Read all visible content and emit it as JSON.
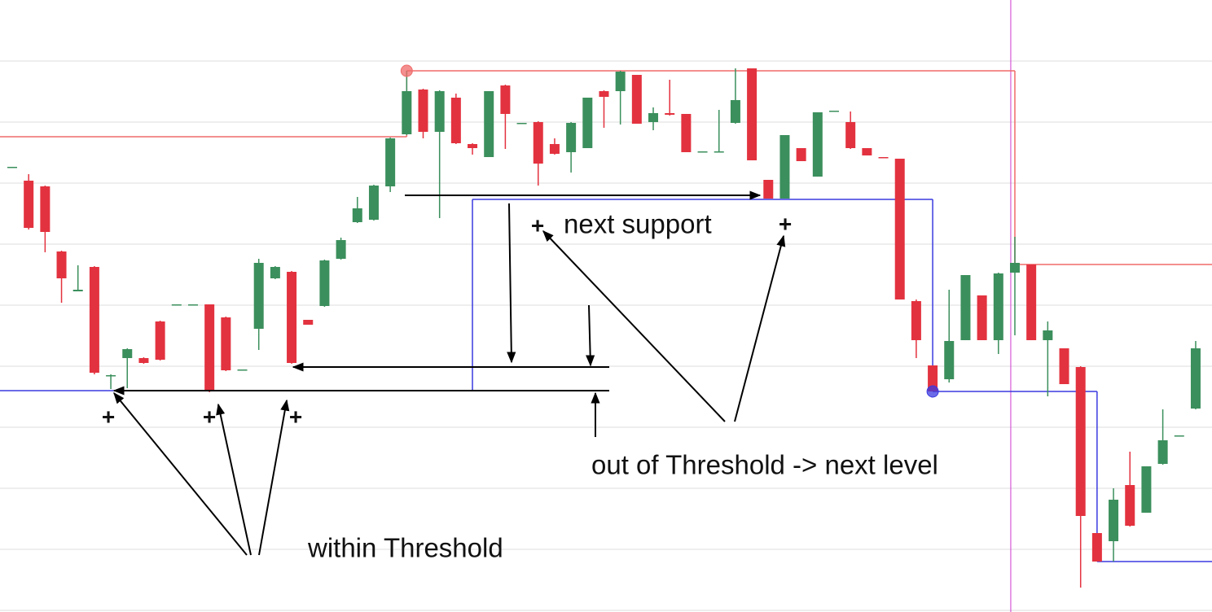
{
  "chart_data": {
    "type": "candlestick",
    "open": [
      544,
      528,
      521,
      441,
      392,
      422,
      288,
      310,
      310,
      355,
      375,
      375,
      376,
      360,
      295,
      346,
      408,
      416,
      357,
      374,
      432,
      477,
      480,
      521,
      585,
      640,
      588,
      630,
      573,
      557,
      645,
      598,
      600,
      573,
      563,
      568,
      638,
      638,
      658,
      600,
      611,
      610,
      563,
      563,
      599,
      666,
      529,
      506,
      568,
      533,
      613,
      600,
      568,
      557,
      555,
      380,
      301,
      284,
      332,
      387,
      332,
      415,
      425,
      332,
      322,
      299,
      95,
      85,
      154,
      120,
      180,
      214,
      248
    ],
    "high": [
      545,
      536,
      522,
      442,
      424,
      423,
      290,
      322,
      311,
      356,
      376,
      376,
      376,
      361,
      296,
      432,
      423,
      417,
      357,
      431,
      458,
      508,
      523,
      581,
      663,
      641,
      639,
      635,
      574,
      638,
      646,
      599,
      601,
      580,
      600,
      630,
      639,
      663,
      658,
      618,
      652,
      610,
      564,
      615,
      666,
      666,
      529,
      584,
      568,
      612,
      614,
      613,
      568,
      557,
      555,
      382,
      301,
      394,
      412,
      387,
      415,
      459,
      425,
      355,
      322,
      300,
      95,
      150,
      195,
      177,
      247,
      215,
      331
    ],
    "low": [
      544,
      468,
      440,
      378,
      392,
      290,
      272,
      273,
      303,
      307,
      375,
      375,
      268,
      294,
      295,
      320,
      407,
      303,
      351,
      373,
      431,
      476,
      479,
      514,
      584,
      580,
      482,
      573,
      560,
      557,
      567,
      598,
      522,
      560,
      538,
      568,
      593,
      597,
      598,
      590,
      608,
      563,
      563,
      563,
      598,
      553,
      506,
      506,
      552,
      533,
      613,
      567,
      559,
      556,
      382,
      310,
      269,
      280,
      332,
      332,
      315,
      338,
      332,
      263,
      278,
      28,
      60,
      60,
      103,
      120,
      179,
      214,
      247
    ],
    "close": [
      545,
      470,
      465,
      408,
      394,
      292,
      289,
      321,
      304,
      308,
      376,
      376,
      270,
      295,
      296,
      427,
      422,
      304,
      351,
      430,
      455,
      494,
      522,
      580,
      638,
      588,
      638,
      574,
      568,
      638,
      610,
      599,
      549,
      561,
      599,
      630,
      631,
      662,
      598,
      611,
      609,
      563,
      564,
      564,
      627,
      553,
      506,
      584,
      552,
      612,
      614,
      568,
      559,
      556,
      382,
      332,
      269,
      331,
      412,
      332,
      414,
      427,
      332,
      344,
      278,
      116,
      60,
      136,
      104,
      177,
      209,
      215,
      322
    ],
    "up_color": "#3b8f5c",
    "down_color": "#e3323f",
    "ylim": [
      -2,
      750
    ],
    "yticks": [
      0,
      75,
      150,
      225,
      300,
      375,
      450,
      525,
      600,
      675
    ],
    "grid": true,
    "levels": [
      {
        "name": "resistance",
        "color": "#f06a6a",
        "starts": [
          0,
          24,
          61
        ],
        "values": [
          582,
          663,
          425
        ],
        "dot": 1
      },
      {
        "name": "support",
        "color": "#3a3ae0",
        "starts": [
          0,
          28,
          56,
          66
        ],
        "values": [
          270,
          505,
          269,
          60
        ],
        "dot": 2
      }
    ],
    "cursor_x": 60.75,
    "cursor_color": "#d65ad6",
    "annotations": [
      "+",
      "+",
      "+",
      "+",
      "+",
      "next support",
      "out of Threshold -> next level",
      "within Threshold"
    ]
  }
}
